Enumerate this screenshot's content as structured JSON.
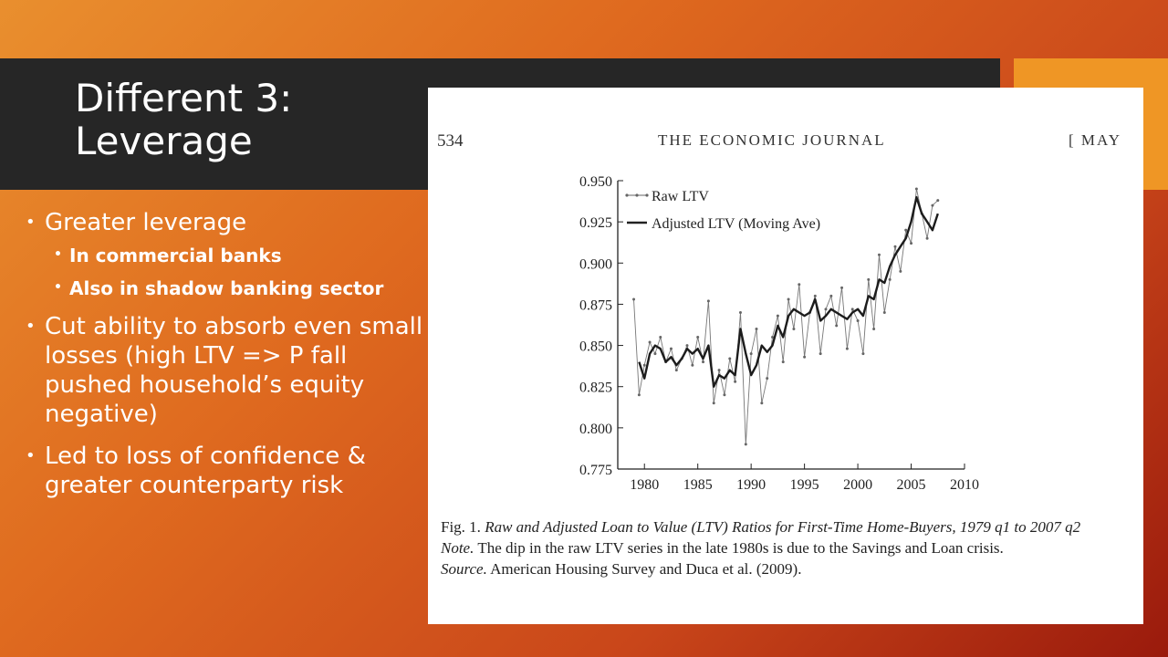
{
  "slide": {
    "title_line1": "Different 3:",
    "title_line2": "Leverage",
    "bullets": {
      "b1": "Greater leverage",
      "b1_sub1": "In commercial banks",
      "b1_sub2": "Also in shadow banking sector",
      "b2": "Cut ability to absorb even small losses (high LTV => P fall pushed household’s equity negative)",
      "b3": "Led to loss of confidence & greater counterparty risk"
    },
    "colors": {
      "title_bar": "#262626",
      "accent": "#ef9625"
    }
  },
  "figure": {
    "page_number": "534",
    "journal": "THE ECONOMIC JOURNAL",
    "month": "[ MAY",
    "caption_prefix": "Fig. 1.",
    "caption_title": "Raw and Adjusted Loan to Value (LTV) Ratios for First-Time Home-Buyers, 1979 q1 to 2007 q2",
    "note_label": "Note.",
    "note_text": "The dip in the raw LTV series in the late 1980s is due to the Savings and Loan crisis.",
    "source_label": "Source.",
    "source_text": "American Housing Survey and Duca et al. (2009)."
  },
  "chart_data": {
    "type": "line",
    "title": "",
    "xlabel": "",
    "ylabel": "",
    "xlim": [
      1977.5,
      2010
    ],
    "ylim": [
      0.775,
      0.95
    ],
    "x_ticks": [
      "1980",
      "1985",
      "1990",
      "1995",
      "2000",
      "2005",
      "2010"
    ],
    "y_ticks": [
      "0.950",
      "0.925",
      "0.900",
      "0.875",
      "0.850",
      "0.825",
      "0.800",
      "0.775"
    ],
    "legend_position": "top-left",
    "series": [
      {
        "name": "Raw LTV",
        "style": "thin-line-markers",
        "x": [
          1979.0,
          1979.5,
          1980.0,
          1980.5,
          1981.0,
          1981.5,
          1982.0,
          1982.5,
          1983.0,
          1983.5,
          1984.0,
          1984.5,
          1985.0,
          1985.5,
          1986.0,
          1986.5,
          1987.0,
          1987.5,
          1988.0,
          1988.5,
          1989.0,
          1989.5,
          1990.0,
          1990.5,
          1991.0,
          1991.5,
          1992.0,
          1992.5,
          1993.0,
          1993.5,
          1994.0,
          1994.5,
          1995.0,
          1995.5,
          1996.0,
          1996.5,
          1997.0,
          1997.5,
          1998.0,
          1998.5,
          1999.0,
          1999.5,
          2000.0,
          2000.5,
          2001.0,
          2001.5,
          2002.0,
          2002.5,
          2003.0,
          2003.5,
          2004.0,
          2004.5,
          2005.0,
          2005.5,
          2006.0,
          2006.5,
          2007.0,
          2007.5
        ],
        "values": [
          0.878,
          0.82,
          0.838,
          0.852,
          0.845,
          0.855,
          0.84,
          0.848,
          0.835,
          0.842,
          0.85,
          0.838,
          0.855,
          0.84,
          0.877,
          0.815,
          0.835,
          0.82,
          0.842,
          0.828,
          0.87,
          0.79,
          0.845,
          0.86,
          0.815,
          0.83,
          0.855,
          0.868,
          0.84,
          0.878,
          0.86,
          0.887,
          0.843,
          0.87,
          0.88,
          0.845,
          0.872,
          0.88,
          0.862,
          0.885,
          0.848,
          0.872,
          0.865,
          0.845,
          0.89,
          0.86,
          0.905,
          0.87,
          0.89,
          0.91,
          0.895,
          0.92,
          0.912,
          0.945,
          0.93,
          0.915,
          0.935,
          0.938
        ]
      },
      {
        "name": "Adjusted LTV (Moving Ave)",
        "style": "thick-line",
        "x": [
          1979.5,
          1980.0,
          1980.5,
          1981.0,
          1981.5,
          1982.0,
          1982.5,
          1983.0,
          1983.5,
          1984.0,
          1984.5,
          1985.0,
          1985.5,
          1986.0,
          1986.5,
          1987.0,
          1987.5,
          1988.0,
          1988.5,
          1989.0,
          1989.5,
          1990.0,
          1990.5,
          1991.0,
          1991.5,
          1992.0,
          1992.5,
          1993.0,
          1993.5,
          1994.0,
          1994.5,
          1995.0,
          1995.5,
          1996.0,
          1996.5,
          1997.0,
          1997.5,
          1998.0,
          1998.5,
          1999.0,
          1999.5,
          2000.0,
          2000.5,
          2001.0,
          2001.5,
          2002.0,
          2002.5,
          2003.0,
          2003.5,
          2004.0,
          2004.5,
          2005.0,
          2005.5,
          2006.0,
          2006.5,
          2007.0,
          2007.5
        ],
        "values": [
          0.84,
          0.83,
          0.845,
          0.85,
          0.848,
          0.84,
          0.843,
          0.838,
          0.842,
          0.848,
          0.845,
          0.848,
          0.842,
          0.85,
          0.825,
          0.832,
          0.83,
          0.835,
          0.832,
          0.86,
          0.845,
          0.832,
          0.838,
          0.85,
          0.846,
          0.85,
          0.862,
          0.855,
          0.868,
          0.872,
          0.87,
          0.868,
          0.87,
          0.878,
          0.865,
          0.868,
          0.872,
          0.87,
          0.868,
          0.866,
          0.87,
          0.872,
          0.868,
          0.88,
          0.878,
          0.89,
          0.888,
          0.898,
          0.905,
          0.91,
          0.915,
          0.925,
          0.94,
          0.93,
          0.925,
          0.92,
          0.93
        ]
      }
    ]
  }
}
